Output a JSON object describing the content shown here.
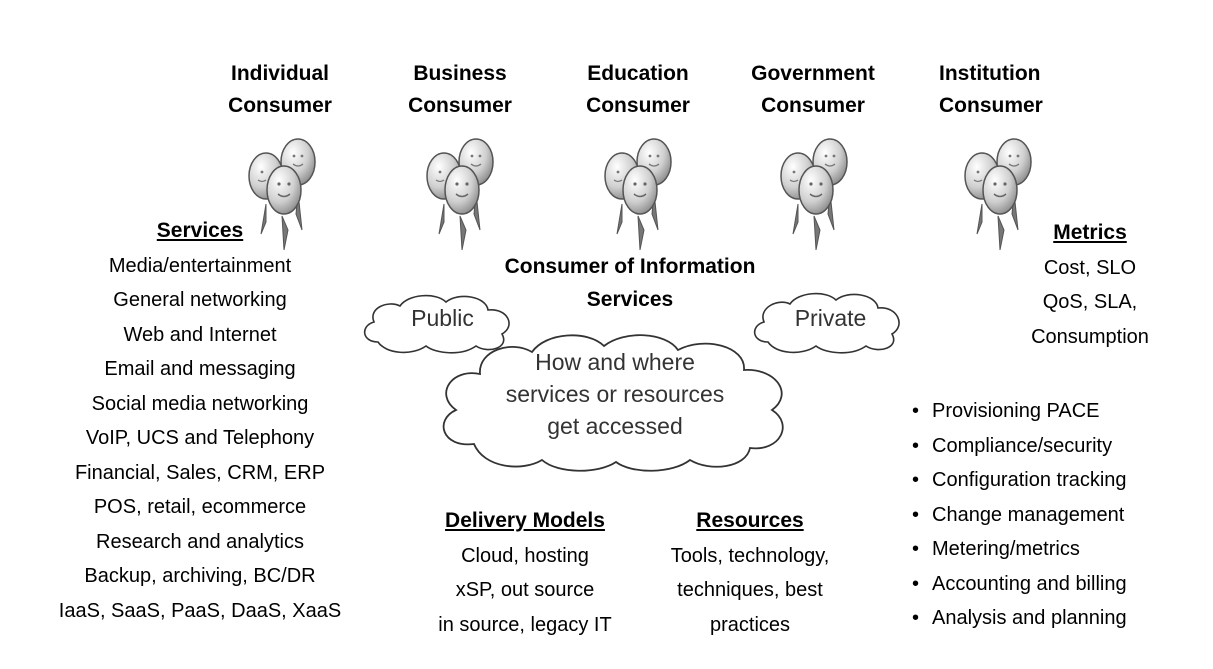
{
  "consumers": [
    {
      "line1": "Individual",
      "line2": "Consumer"
    },
    {
      "line1": "Business",
      "line2": "Consumer"
    },
    {
      "line1": "Education",
      "line2": "Consumer"
    },
    {
      "line1": "Government",
      "line2": "Consumer"
    },
    {
      "line1": "Institution",
      "line2": "Consumer"
    }
  ],
  "services": {
    "heading": "Services",
    "items": [
      "Media/entertainment",
      "General networking",
      "Web and Internet",
      "Email and messaging",
      "Social media networking",
      "VoIP, UCS and Telephony",
      "Financial, Sales, CRM, ERP",
      "POS, retail, ecommerce",
      "Research and analytics",
      "Backup, archiving, BC/DR",
      "IaaS, SaaS, PaaS, DaaS, XaaS"
    ]
  },
  "center": {
    "title_line1": "Consumer of Information",
    "title_line2": "Services",
    "public_label": "Public",
    "private_label": "Private",
    "cloud_line1": "How and where",
    "cloud_line2": "services or resources",
    "cloud_line3": "get accessed"
  },
  "metrics": {
    "heading": "Metrics",
    "items": [
      "Cost, SLO",
      "QoS, SLA,",
      "Consumption"
    ],
    "bullets": [
      "Provisioning PACE",
      "Compliance/security",
      "Configuration tracking",
      "Change management",
      "Metering/metrics",
      "Accounting and billing",
      "Analysis and planning"
    ]
  },
  "delivery_models": {
    "heading": "Delivery Models",
    "items": [
      "Cloud, hosting",
      "xSP, out source",
      "in source, legacy IT"
    ]
  },
  "resources": {
    "heading": "Resources",
    "items": [
      "Tools, technology,",
      "techniques, best",
      "practices"
    ]
  },
  "colors": {
    "balloon_fill": "#d9d9d9",
    "balloon_stroke": "#555555",
    "cloud_stroke": "#333333"
  }
}
